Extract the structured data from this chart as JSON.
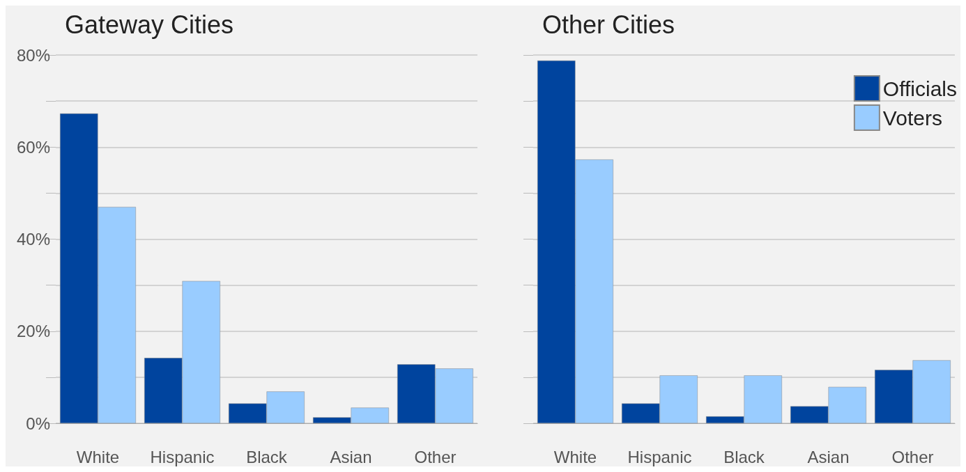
{
  "chart_data": [
    {
      "type": "bar",
      "title": "Gateway Cities",
      "categories": [
        "White",
        "Hispanic",
        "Black",
        "Asian",
        "Other"
      ],
      "series": [
        {
          "color": "#00449e",
          "values": [
            67.3,
            14.2,
            4.3,
            1.3,
            12.8
          ]
        },
        {
          "color": "#99ccff",
          "values": [
            47.0,
            30.9,
            6.9,
            3.4,
            11.9
          ]
        }
      ],
      "ylim": [
        0,
        80
      ],
      "yticks": [
        {
          "value": 0,
          "label": "0%"
        },
        {
          "value": 10,
          "label": null
        },
        {
          "value": 20,
          "label": "20%"
        },
        {
          "value": 30,
          "label": null
        },
        {
          "value": 40,
          "label": "40%"
        },
        {
          "value": 50,
          "label": null
        },
        {
          "value": 60,
          "label": "60%"
        },
        {
          "value": 70,
          "label": null
        },
        {
          "value": 80,
          "label": "80%"
        }
      ],
      "grid": "y",
      "legend": false
    },
    {
      "type": "bar",
      "title": "Other Cities",
      "categories": [
        "White",
        "Hispanic",
        "Black",
        "Asian",
        "Other"
      ],
      "series": [
        {
          "name": "Officials",
          "color": "#00449e",
          "values": [
            78.8,
            4.3,
            1.5,
            3.7,
            11.6
          ]
        },
        {
          "name": "Voters",
          "color": "#99ccff",
          "values": [
            57.3,
            10.4,
            10.4,
            7.9,
            13.7
          ]
        }
      ],
      "ylim": [
        0,
        80
      ],
      "yticks": [
        {
          "value": 0,
          "label": null
        },
        {
          "value": 10,
          "label": null
        },
        {
          "value": 20,
          "label": null
        },
        {
          "value": 30,
          "label": null
        },
        {
          "value": 40,
          "label": null
        },
        {
          "value": 50,
          "label": null
        },
        {
          "value": 60,
          "label": null
        },
        {
          "value": 70,
          "label": null
        },
        {
          "value": 80,
          "label": null
        }
      ],
      "grid": "y",
      "legend": "top right",
      "tick_labels": "x"
    }
  ]
}
